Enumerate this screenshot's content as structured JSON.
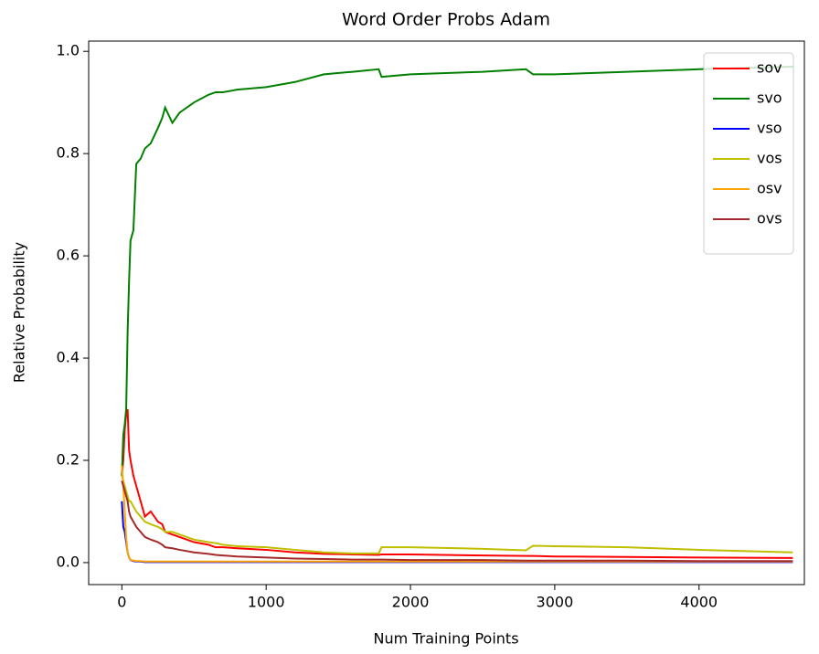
{
  "chart_data": {
    "type": "line",
    "title": "Word Order Probs Adam",
    "xlabel": "Num Training Points",
    "ylabel": "Relative Probability",
    "x": [
      0,
      10,
      20,
      30,
      40,
      50,
      60,
      80,
      100,
      130,
      160,
      200,
      250,
      280,
      300,
      350,
      400,
      500,
      600,
      650,
      700,
      800,
      1000,
      1200,
      1400,
      1600,
      1780,
      1800,
      2000,
      2500,
      2800,
      2850,
      3000,
      3500,
      4000,
      4650
    ],
    "series": [
      {
        "name": "sov",
        "color": "#ff0000",
        "values": [
          0.17,
          0.2,
          0.26,
          0.29,
          0.3,
          0.22,
          0.2,
          0.17,
          0.15,
          0.12,
          0.09,
          0.1,
          0.08,
          0.075,
          0.06,
          0.055,
          0.05,
          0.04,
          0.035,
          0.03,
          0.03,
          0.028,
          0.025,
          0.02,
          0.017,
          0.016,
          0.015,
          0.016,
          0.016,
          0.014,
          0.013,
          0.013,
          0.012,
          0.011,
          0.01,
          0.009
        ]
      },
      {
        "name": "svo",
        "color": "#008000",
        "values": [
          0.17,
          0.25,
          0.27,
          0.3,
          0.45,
          0.55,
          0.63,
          0.65,
          0.78,
          0.79,
          0.81,
          0.82,
          0.85,
          0.87,
          0.89,
          0.86,
          0.88,
          0.9,
          0.915,
          0.92,
          0.92,
          0.925,
          0.93,
          0.94,
          0.955,
          0.96,
          0.965,
          0.95,
          0.955,
          0.96,
          0.965,
          0.955,
          0.955,
          0.96,
          0.965,
          0.97
        ]
      },
      {
        "name": "vso",
        "color": "#0000ff",
        "values": [
          0.12,
          0.07,
          0.06,
          0.04,
          0.02,
          0.01,
          0.005,
          0.003,
          0.002,
          0.002,
          0.001,
          0.001,
          0.001,
          0.001,
          0.001,
          0.001,
          0.001,
          0.001,
          0.001,
          0.001,
          0.001,
          0.001,
          0.001,
          0.001,
          0.001,
          0.001,
          0.001,
          0.001,
          0.001,
          0.001,
          0.001,
          0.001,
          0.001,
          0.001,
          0.001,
          0.001
        ]
      },
      {
        "name": "vos",
        "color": "#bfbf00",
        "values": [
          0.17,
          0.16,
          0.15,
          0.14,
          0.13,
          0.12,
          0.12,
          0.11,
          0.1,
          0.09,
          0.08,
          0.075,
          0.07,
          0.065,
          0.06,
          0.06,
          0.055,
          0.045,
          0.04,
          0.038,
          0.035,
          0.032,
          0.03,
          0.025,
          0.02,
          0.018,
          0.018,
          0.03,
          0.03,
          0.027,
          0.024,
          0.033,
          0.032,
          0.03,
          0.025,
          0.02
        ]
      },
      {
        "name": "osv",
        "color": "#ffa500",
        "values": [
          0.19,
          0.15,
          0.1,
          0.05,
          0.02,
          0.01,
          0.005,
          0.004,
          0.003,
          0.003,
          0.002,
          0.002,
          0.002,
          0.002,
          0.002,
          0.002,
          0.002,
          0.002,
          0.002,
          0.002,
          0.002,
          0.002,
          0.002,
          0.002,
          0.002,
          0.002,
          0.002,
          0.002,
          0.002,
          0.002,
          0.002,
          0.002,
          0.002,
          0.002,
          0.002,
          0.002
        ]
      },
      {
        "name": "ovs",
        "color": "#a52a2a",
        "values": [
          0.16,
          0.15,
          0.14,
          0.13,
          0.12,
          0.1,
          0.09,
          0.08,
          0.07,
          0.06,
          0.05,
          0.045,
          0.04,
          0.035,
          0.03,
          0.028,
          0.025,
          0.02,
          0.017,
          0.015,
          0.014,
          0.012,
          0.01,
          0.008,
          0.007,
          0.006,
          0.006,
          0.006,
          0.005,
          0.005,
          0.004,
          0.004,
          0.004,
          0.004,
          0.003,
          0.003
        ]
      }
    ],
    "xlim": [
      -230,
      4730
    ],
    "xticks": [
      0,
      1000,
      2000,
      3000,
      4000
    ],
    "ylim": [
      -0.043,
      1.02
    ],
    "yticks": [
      {
        "value": 0,
        "label": "0.0"
      },
      0.2,
      0.4,
      0.6,
      0.8,
      {
        "value": 1,
        "label": "1.0"
      }
    ],
    "grid": false,
    "legend": "upper right"
  }
}
